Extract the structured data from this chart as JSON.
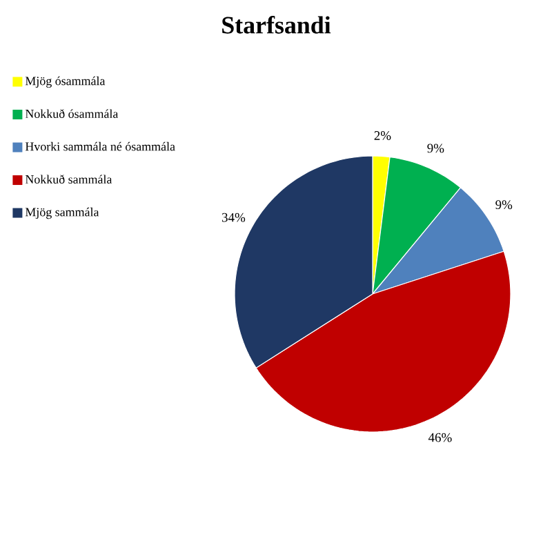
{
  "chart_data": {
    "type": "pie",
    "title": "Starfsandi",
    "categories": [
      "Mjög ósammála",
      "Nokkuð ósammála",
      "Hvorki sammála né ósammála",
      "Nokkuð sammála",
      "Mjög sammála"
    ],
    "values": [
      2,
      9,
      9,
      46,
      34
    ],
    "colors": [
      "#ffff00",
      "#00b050",
      "#4f81bd",
      "#c00000",
      "#1f3864"
    ],
    "value_labels": [
      "2%",
      "9%",
      "9%",
      "46%",
      "34%"
    ],
    "legend": "top left"
  }
}
